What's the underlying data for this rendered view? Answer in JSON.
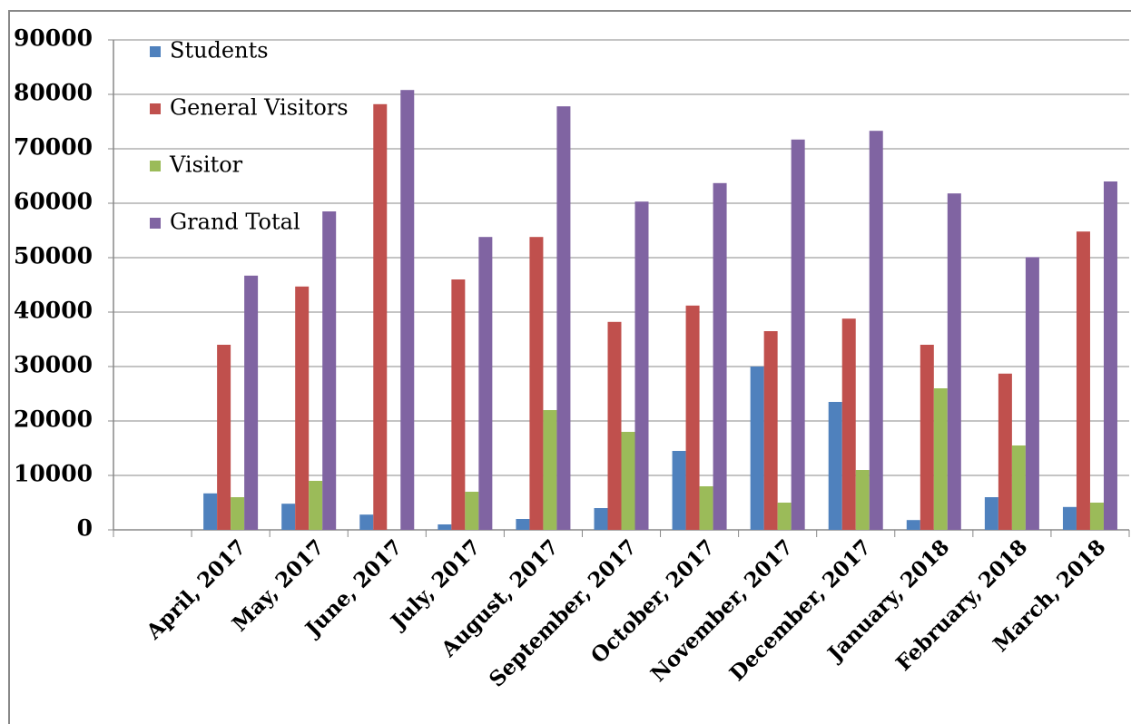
{
  "chart_data": {
    "type": "bar",
    "categories": [
      null,
      "April, 2017",
      "May, 2017",
      "June, 2017",
      "July, 2017",
      "August, 2017",
      "September, 2017",
      "October, 2017",
      "November, 2017",
      "December, 2017",
      "January, 2018",
      "February, 2018",
      "March, 2018"
    ],
    "series": [
      {
        "name": "Students",
        "color": "#4f81bd",
        "values": [
          null,
          6700,
          4800,
          2800,
          1000,
          2000,
          4000,
          14500,
          30000,
          23500,
          1800,
          6000,
          4200
        ]
      },
      {
        "name": "General Visitors",
        "color": "#c0504d",
        "values": [
          null,
          34000,
          44700,
          78200,
          46000,
          53800,
          38200,
          41200,
          36500,
          38800,
          34000,
          28700,
          54800
        ]
      },
      {
        "name": "Visitor",
        "color": "#9bbb59",
        "values": [
          null,
          6000,
          9000,
          0,
          7000,
          22000,
          18000,
          8000,
          5000,
          11000,
          26000,
          15500,
          5000
        ]
      },
      {
        "name": "Grand Total",
        "color": "#8064a2",
        "values": [
          null,
          46700,
          58500,
          80800,
          53800,
          77800,
          60300,
          63700,
          71700,
          73300,
          61800,
          50100,
          64000
        ]
      }
    ],
    "ylim": [
      0,
      90000
    ],
    "yticks": [
      0,
      10000,
      20000,
      30000,
      40000,
      50000,
      60000,
      70000,
      80000,
      90000
    ],
    "grid": true,
    "legend": "top-left"
  }
}
